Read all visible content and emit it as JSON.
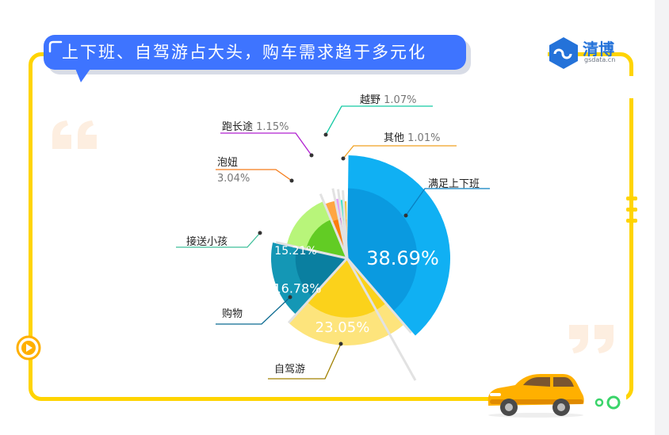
{
  "header": {
    "title": "上下班、自驾游占大头，购车需求趋于多元化",
    "brand_name": "清博",
    "brand_url": "gsdata.cn",
    "brand_color": "#2472d9",
    "accent_color": "#ffd400",
    "title_color": "#3e74ff"
  },
  "chart_data": {
    "type": "pie",
    "title": "",
    "unit": "%",
    "slices": [
      {
        "name": "满足上下班",
        "value": 38.69,
        "value_label": "38.69%",
        "color": "#10b0f3",
        "inner_color": "#0a9ae0"
      },
      {
        "name": "自驾游",
        "value": 23.05,
        "value_label": "23.05%",
        "color": "#fde47c",
        "inner_color": "#fbd21b"
      },
      {
        "name": "购物",
        "value": 16.78,
        "value_label": "16.78%",
        "color": "#1497b5",
        "inner_color": "#0a7fa0"
      },
      {
        "name": "接送小孩",
        "value": 15.21,
        "value_label": "15.21%",
        "color": "#b8f57a",
        "inner_color": "#62cc24"
      },
      {
        "name": "泡妞",
        "value": 3.04,
        "value_label": "3.04%",
        "color": "#ffa642",
        "inner_color": "#fb7d0b"
      },
      {
        "name": "跑长途",
        "value": 1.15,
        "value_label": "1.15%",
        "color": "#e59bf7",
        "inner_color": "#c320e0"
      },
      {
        "name": "越野",
        "value": 1.07,
        "value_label": "1.07%",
        "color": "#34e8c4",
        "inner_color": "#15d8b1"
      },
      {
        "name": "其他",
        "value": 1.01,
        "value_label": "1.01%",
        "color": "#f6c240",
        "inner_color": "#f5a623"
      }
    ]
  }
}
